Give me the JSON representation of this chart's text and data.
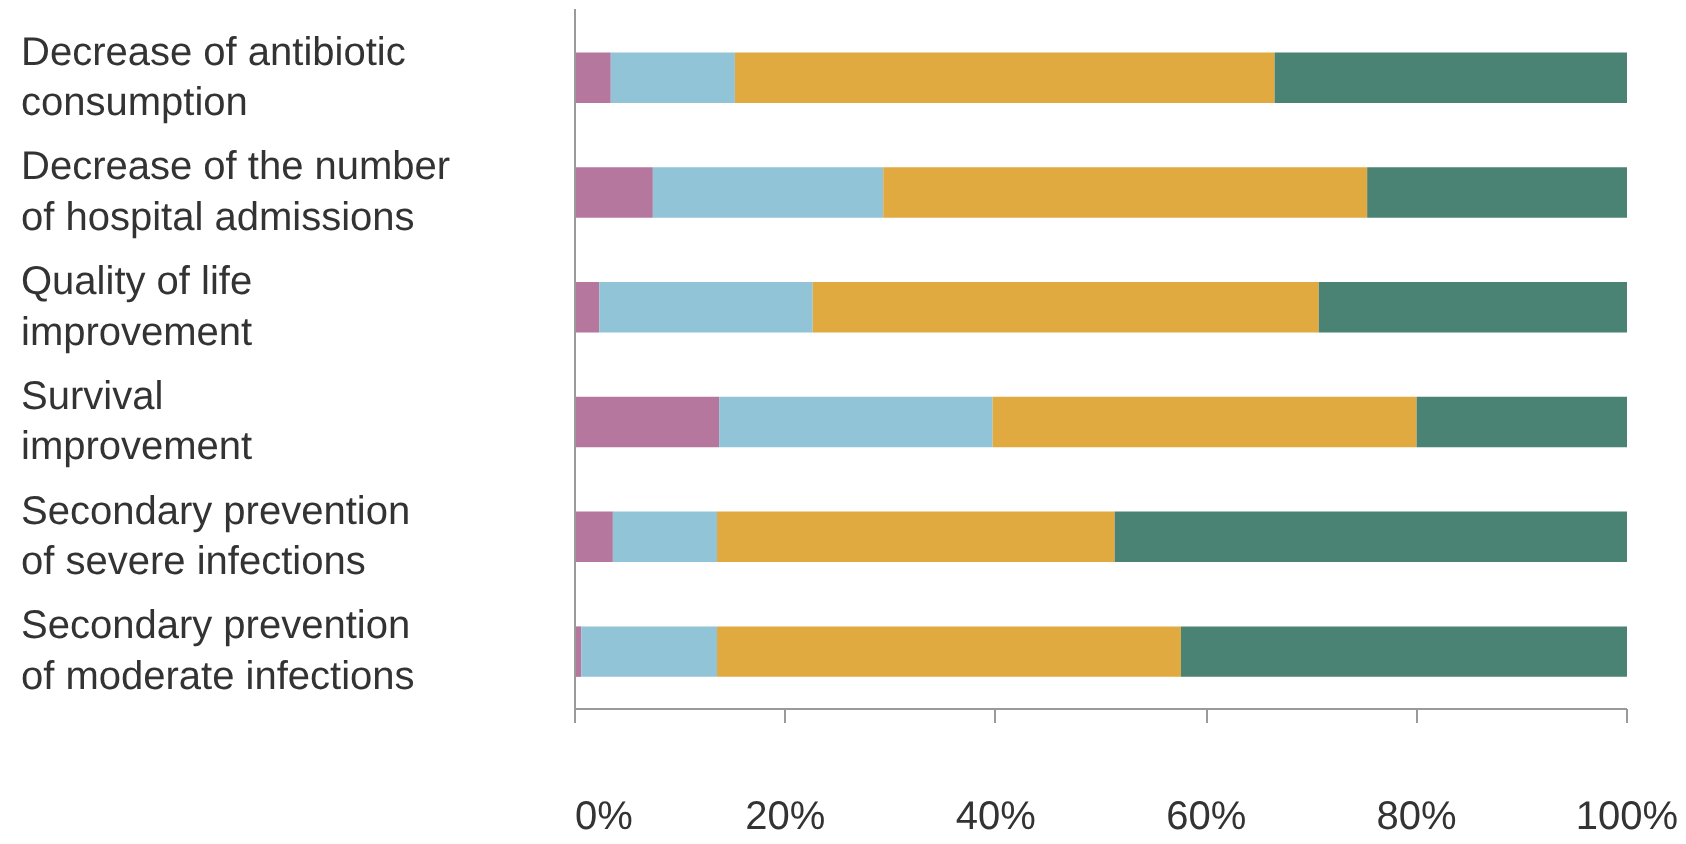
{
  "chart_data": {
    "type": "bar",
    "orientation": "horizontal",
    "stacked": true,
    "categories": [
      "Decrease of antibiotic\nconsumption",
      "Decrease of the number\nof hospital admissions",
      "Quality of life\nimprovement",
      "Survival\nimprovement",
      "Secondary prevention\nof severe infections",
      "Secondary prevention\nof moderate infections"
    ],
    "series": [
      {
        "color": "#b6779f",
        "values": [
          3.4,
          7.4,
          2.3,
          13.7,
          3.6,
          0.6
        ]
      },
      {
        "color": "#92c4d8",
        "values": [
          11.8,
          21.9,
          20.3,
          26.0,
          9.9,
          12.9
        ]
      },
      {
        "color": "#e0aa41",
        "values": [
          51.3,
          46.0,
          48.1,
          40.3,
          37.8,
          44.1
        ]
      },
      {
        "color": "#4a8274",
        "values": [
          33.5,
          24.7,
          29.3,
          20.0,
          48.7,
          42.4
        ]
      }
    ],
    "xlim": [
      0,
      100
    ],
    "xticks": [
      {
        "value": 0,
        "label": "0%"
      },
      {
        "value": 20,
        "label": "20%"
      },
      {
        "value": 40,
        "label": "40%"
      },
      {
        "value": 60,
        "label": "60%"
      },
      {
        "value": 80,
        "label": "80%"
      },
      {
        "value": 100,
        "label": "100%"
      }
    ],
    "grid": false
  }
}
